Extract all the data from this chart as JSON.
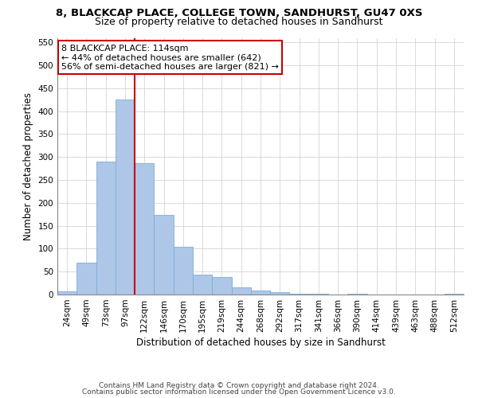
{
  "title1": "8, BLACKCAP PLACE, COLLEGE TOWN, SANDHURST, GU47 0XS",
  "title2": "Size of property relative to detached houses in Sandhurst",
  "xlabel": "Distribution of detached houses by size in Sandhurst",
  "ylabel": "Number of detached properties",
  "categories": [
    "24sqm",
    "49sqm",
    "73sqm",
    "97sqm",
    "122sqm",
    "146sqm",
    "170sqm",
    "195sqm",
    "219sqm",
    "244sqm",
    "268sqm",
    "292sqm",
    "317sqm",
    "341sqm",
    "366sqm",
    "390sqm",
    "414sqm",
    "439sqm",
    "463sqm",
    "488sqm",
    "512sqm"
  ],
  "values": [
    7,
    70,
    290,
    425,
    287,
    174,
    105,
    43,
    38,
    16,
    8,
    6,
    2,
    1,
    0,
    1,
    0,
    0,
    0,
    0,
    2
  ],
  "bar_color": "#aec6e8",
  "bar_edge_color": "#7aafd4",
  "vline_index": 4,
  "vline_color": "#cc0000",
  "annotation_text": "8 BLACKCAP PLACE: 114sqm\n← 44% of detached houses are smaller (642)\n56% of semi-detached houses are larger (821) →",
  "annotation_box_color": "#ffffff",
  "annotation_box_edge_color": "#cc0000",
  "ylim": [
    0,
    560
  ],
  "yticks": [
    0,
    50,
    100,
    150,
    200,
    250,
    300,
    350,
    400,
    450,
    500,
    550
  ],
  "footer1": "Contains HM Land Registry data © Crown copyright and database right 2024.",
  "footer2": "Contains public sector information licensed under the Open Government Licence v3.0.",
  "bg_color": "#ffffff",
  "grid_color": "#cccccc",
  "title1_fontsize": 9.5,
  "title2_fontsize": 9,
  "xlabel_fontsize": 8.5,
  "ylabel_fontsize": 8.5,
  "tick_fontsize": 7.5,
  "annotation_fontsize": 8,
  "footer_fontsize": 6.5
}
